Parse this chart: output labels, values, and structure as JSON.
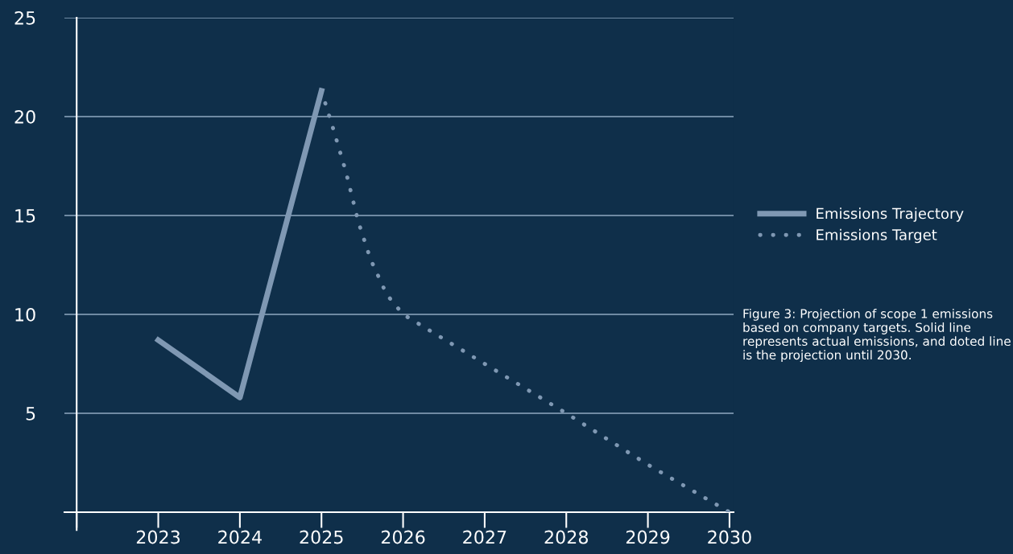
{
  "chart_data": {
    "type": "line",
    "series": [
      {
        "name": "Emissions Trajectory",
        "color": "#7f98b3",
        "line_style": "solid",
        "marker": "none",
        "x": [
          2023,
          2024,
          2025
        ],
        "values": [
          8.7,
          5.8,
          21.3
        ]
      },
      {
        "name": "Emissions Target",
        "color": "#7f98b3",
        "line_style": "dotted",
        "marker": "none",
        "x": [
          2025,
          2025.15,
          2025.3,
          2025.45,
          2025.6,
          2025.8,
          2026,
          2027,
          2028,
          2029,
          2030
        ],
        "values": [
          21.3,
          19.3,
          17.2,
          14.7,
          12.8,
          11,
          10,
          7.5,
          5.0,
          2.4,
          0
        ]
      }
    ],
    "xlim": [
      2021.85,
      2030.05
    ],
    "xticks": [
      {
        "value": 2022,
        "label": null
      },
      2023,
      2024,
      2025,
      2026,
      2027,
      2028,
      2029,
      2030
    ],
    "ylim": [
      0,
      25
    ],
    "yticks": [
      5,
      10,
      15,
      20,
      25
    ],
    "grid": "y",
    "legend": "right",
    "annotations": [
      "Figure 3: Projection of scope 1 emissions based on company targets. Solid line represents actual emissions, and doted line is the projection until 2030."
    ]
  }
}
